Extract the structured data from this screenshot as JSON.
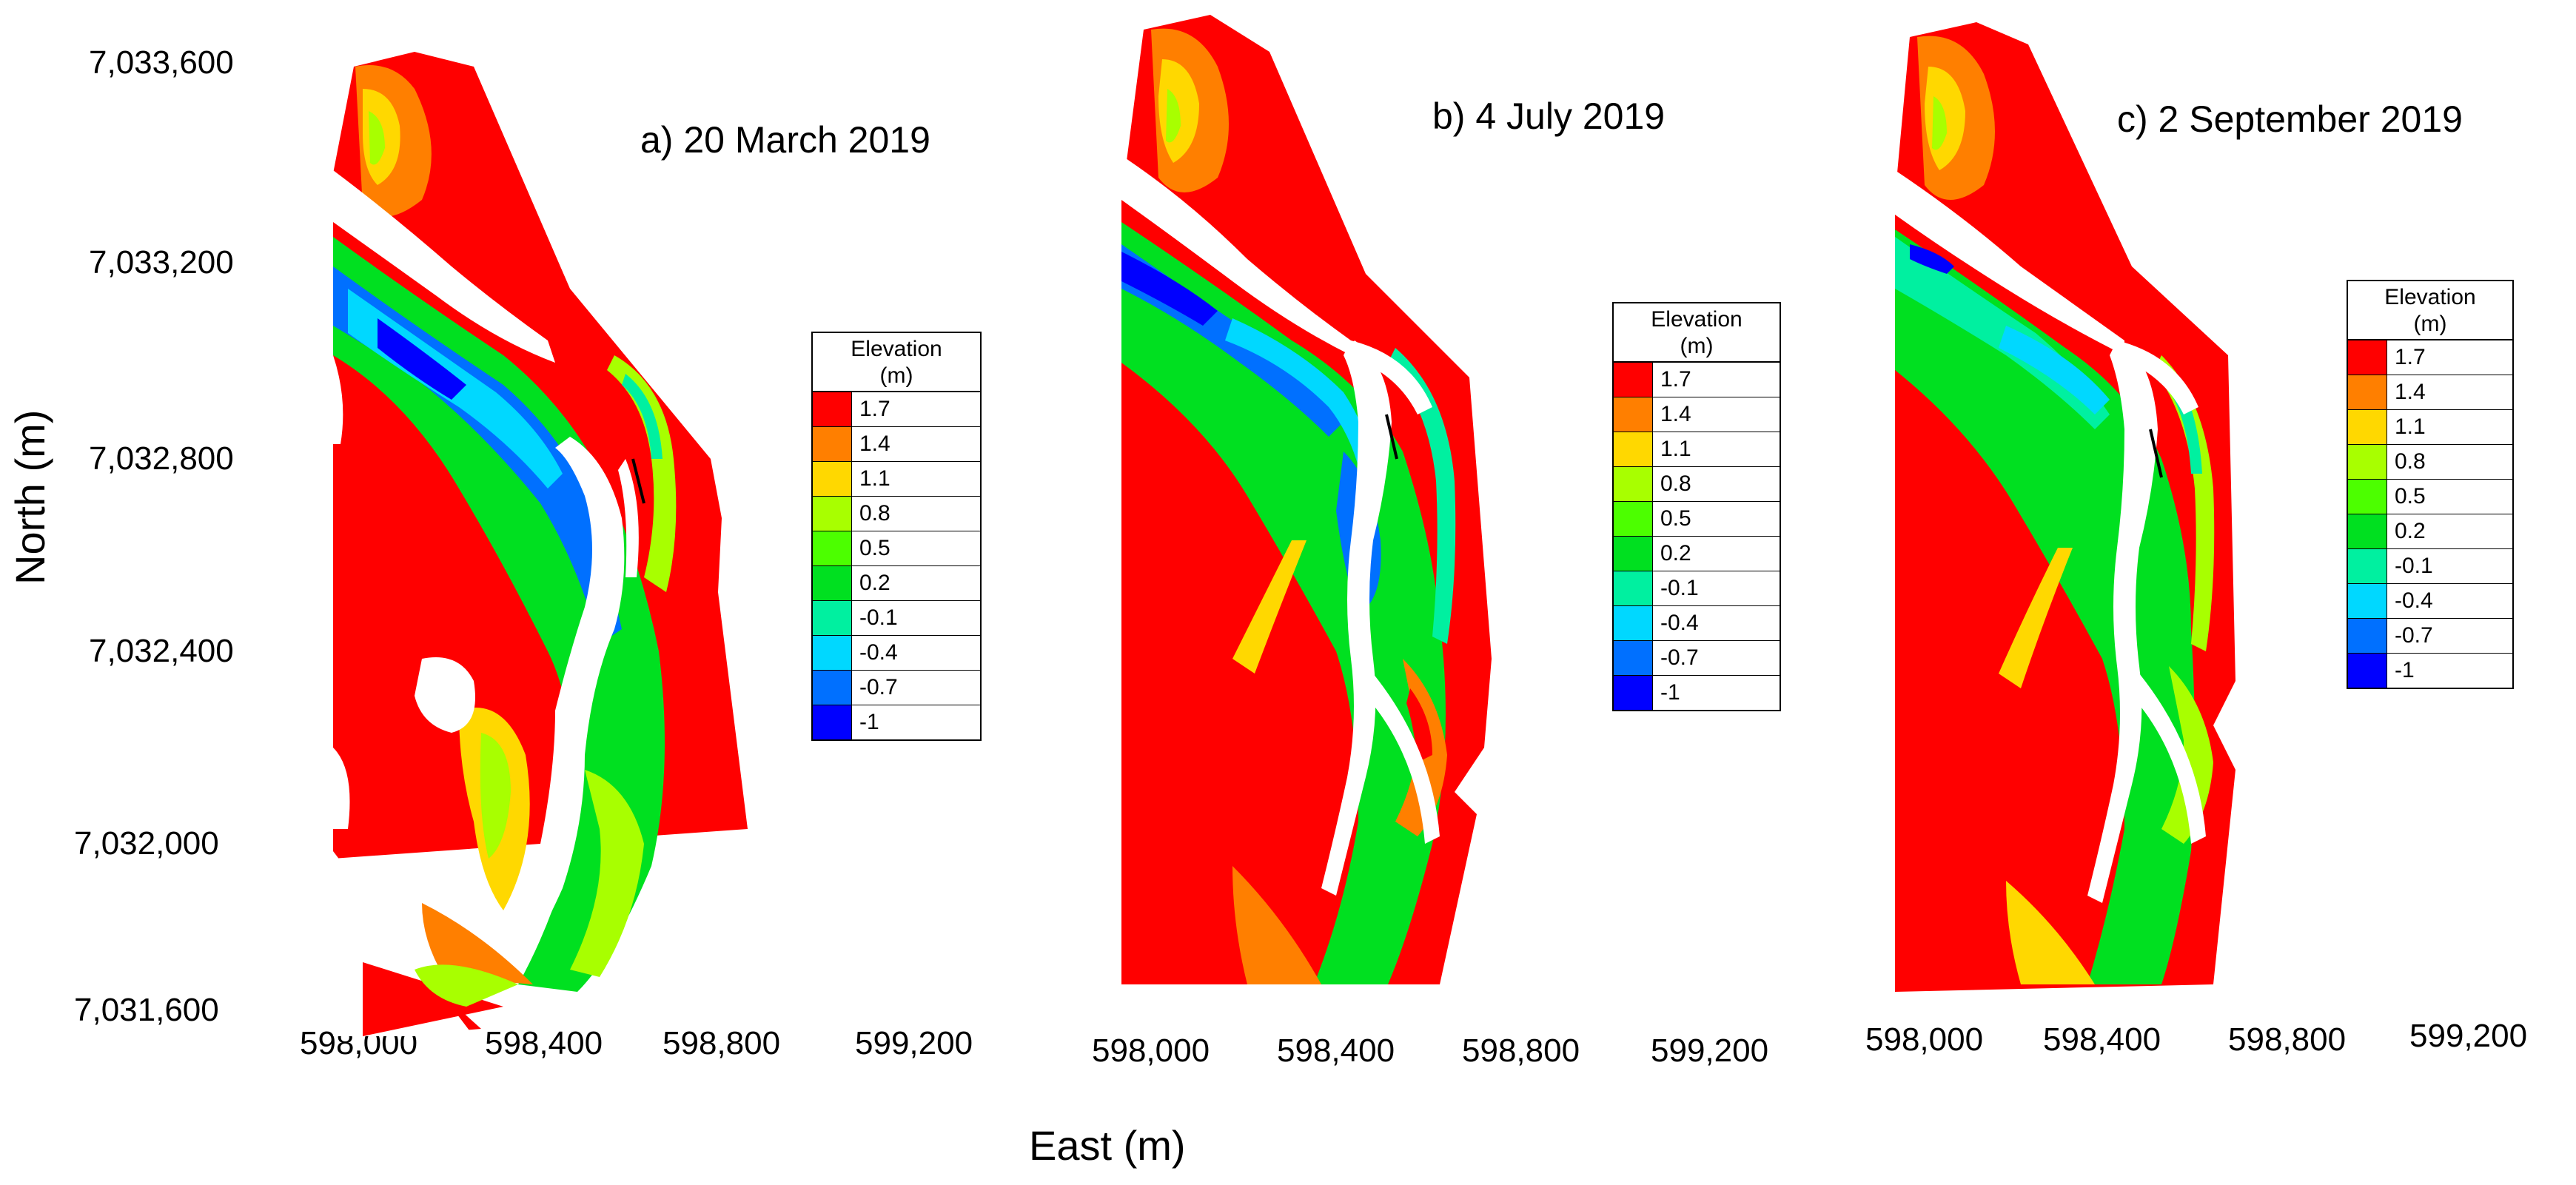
{
  "axes": {
    "y_title": "North (m)",
    "x_title": "East (m)",
    "y_ticks": [
      "7,033,600",
      "7,033,200",
      "7,032,800",
      "7,032,400",
      "7,032,000",
      "7,031,600"
    ],
    "x_ticks": [
      "598,000",
      "598,400",
      "598,800",
      "599,200"
    ]
  },
  "panels": [
    {
      "title": "a) 20 March 2019"
    },
    {
      "title": "b) 4 July 2019"
    },
    {
      "title": "c) 2 September 2019"
    }
  ],
  "legend": {
    "title_line1": "Elevation",
    "title_line2": "(m)",
    "items": [
      {
        "value": "1.7",
        "color": "#ff0000"
      },
      {
        "value": "1.4",
        "color": "#ff7f00"
      },
      {
        "value": "1.1",
        "color": "#ffd800"
      },
      {
        "value": "0.8",
        "color": "#a8ff00"
      },
      {
        "value": "0.5",
        "color": "#4cff00"
      },
      {
        "value": "0.2",
        "color": "#00e020"
      },
      {
        "value": "-0.1",
        "color": "#00f0a0"
      },
      {
        "value": "-0.4",
        "color": "#00d8ff"
      },
      {
        "value": "-0.7",
        "color": "#0070ff"
      },
      {
        "value": "-1",
        "color": "#0000ff"
      }
    ]
  }
}
